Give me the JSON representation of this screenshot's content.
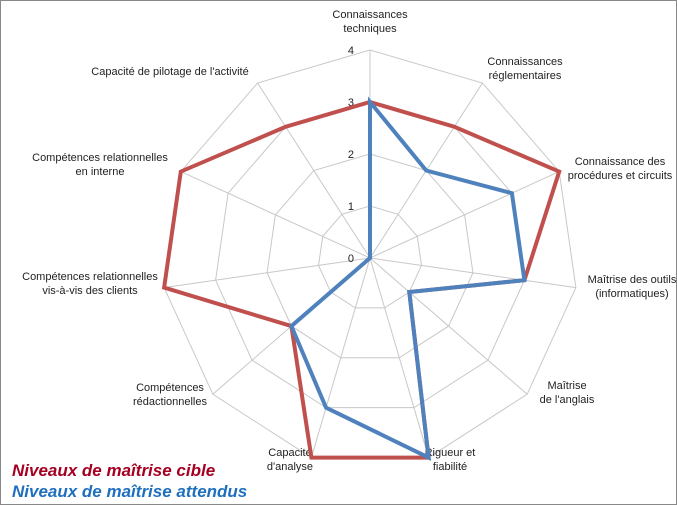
{
  "chart_data": {
    "type": "radar",
    "categories": [
      "Connaissances\ntechniques",
      "Connaissances\nréglementaires",
      "Connaissance des\nprocédures et circuits",
      "Maîtrise des outils\n(informatiques)",
      "Maîtrise\nde l'anglais",
      "Rigueur et\nfiabilité",
      "Capacité\nd'analyse",
      "Compétences\nrédactionnelles",
      "Compétences relationnelles\nvis-à-vis des clients",
      "Compétences relationnelles\nen interne",
      "Capacité de pilotage de l'activité"
    ],
    "series": [
      {
        "name": "Niveaux de maîtrise cible",
        "color": "#c0504d",
        "legend_color": "#a50021",
        "values": [
          3,
          3,
          4,
          3,
          1,
          4,
          4,
          2,
          4,
          4,
          3
        ]
      },
      {
        "name": "Niveaux de maîtrise attendus",
        "color": "#4f81bd",
        "legend_color": "#1f6fbf",
        "values": [
          3,
          2,
          3,
          3,
          1,
          4,
          3,
          2,
          0,
          0,
          0
        ]
      }
    ],
    "ylim": [
      0,
      4
    ],
    "yticks": [
      0,
      1,
      2,
      3,
      4
    ],
    "grid": true
  }
}
